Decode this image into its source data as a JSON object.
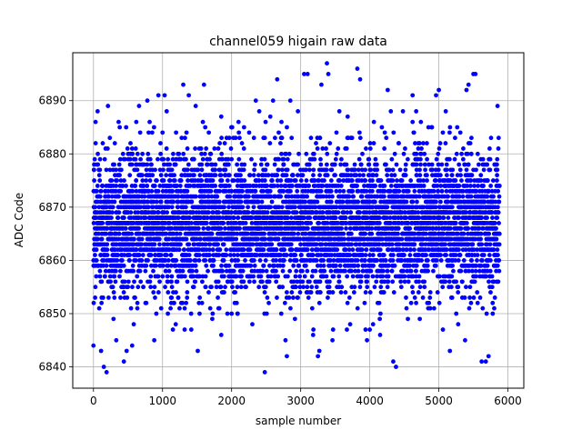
{
  "chart_data": {
    "type": "scatter",
    "title": "channel059 higain raw data",
    "xlabel": "sample number",
    "ylabel": "ADC Code",
    "xlim": [
      -300,
      6230
    ],
    "ylim": [
      6836,
      6899
    ],
    "xticks": [
      0,
      1000,
      2000,
      3000,
      4000,
      5000,
      6000
    ],
    "yticks": [
      6840,
      6850,
      6860,
      6870,
      6880,
      6890
    ],
    "grid": true,
    "marker_color": "#0000ff",
    "n_samples": 5880,
    "baseline": 6867,
    "noise_sigma": 6.5,
    "series": [
      {
        "x_start": 0,
        "x_end": 5880,
        "points": [
          [
            0,
            6844
          ],
          [
            30,
            6886
          ],
          [
            60,
            6888
          ],
          [
            110,
            6843
          ],
          [
            150,
            6840
          ],
          [
            190,
            6839
          ],
          [
            210,
            6889
          ],
          [
            330,
            6845
          ],
          [
            380,
            6885
          ],
          [
            440,
            6841
          ],
          [
            480,
            6843
          ],
          [
            560,
            6844
          ],
          [
            620,
            6886
          ],
          [
            660,
            6889
          ],
          [
            780,
            6890
          ],
          [
            880,
            6845
          ],
          [
            940,
            6891
          ],
          [
            1000,
            6884
          ],
          [
            1030,
            6891
          ],
          [
            1060,
            6888
          ],
          [
            1150,
            6847
          ],
          [
            1300,
            6893
          ],
          [
            1320,
            6847
          ],
          [
            1380,
            6891
          ],
          [
            1480,
            6889
          ],
          [
            1510,
            6843
          ],
          [
            1600,
            6893
          ],
          [
            1720,
            6849
          ],
          [
            1850,
            6887
          ],
          [
            1900,
            6882
          ],
          [
            2000,
            6850
          ],
          [
            2100,
            6886
          ],
          [
            2180,
            6885
          ],
          [
            2300,
            6848
          ],
          [
            2350,
            6890
          ],
          [
            2400,
            6888
          ],
          [
            2480,
            6839
          ],
          [
            2560,
            6887
          ],
          [
            2600,
            6890
          ],
          [
            2660,
            6894
          ],
          [
            2780,
            6845
          ],
          [
            2800,
            6842
          ],
          [
            2850,
            6890
          ],
          [
            2960,
            6888
          ],
          [
            3050,
            6895
          ],
          [
            3100,
            6895
          ],
          [
            3180,
            6846
          ],
          [
            3250,
            6842
          ],
          [
            3270,
            6843
          ],
          [
            3300,
            6893
          ],
          [
            3380,
            6897
          ],
          [
            3400,
            6895
          ],
          [
            3460,
            6845
          ],
          [
            3560,
            6888
          ],
          [
            3680,
            6887
          ],
          [
            3820,
            6896
          ],
          [
            3860,
            6894
          ],
          [
            3960,
            6845
          ],
          [
            4000,
            6847
          ],
          [
            4060,
            6886
          ],
          [
            4150,
            6846
          ],
          [
            4260,
            6892
          ],
          [
            4340,
            6841
          ],
          [
            4380,
            6840
          ],
          [
            4480,
            6888
          ],
          [
            4620,
            6891
          ],
          [
            4740,
            6886
          ],
          [
            4850,
            6885
          ],
          [
            4960,
            6891
          ],
          [
            5000,
            6892
          ],
          [
            5100,
            6888
          ],
          [
            5160,
            6843
          ],
          [
            5280,
            6848
          ],
          [
            5380,
            6845
          ],
          [
            5400,
            6892
          ],
          [
            5430,
            6893
          ],
          [
            5500,
            6895
          ],
          [
            5530,
            6895
          ],
          [
            5620,
            6841
          ],
          [
            5680,
            6841
          ],
          [
            5720,
            6842
          ],
          [
            5780,
            6850
          ],
          [
            5850,
            6889
          ]
        ]
      }
    ]
  }
}
